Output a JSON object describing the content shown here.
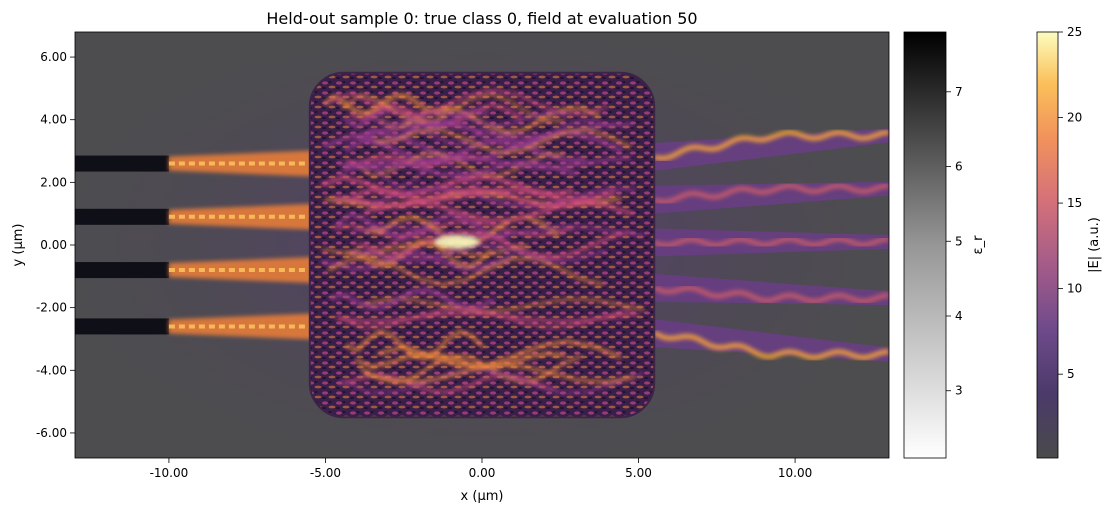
{
  "chart_data": {
    "type": "heatmap",
    "title": "Held-out sample 0: true class 0, field at evaluation 50",
    "xlabel": "x (µm)",
    "ylabel": "y (µm)",
    "xlim": [
      -13,
      13
    ],
    "ylim": [
      -6.8,
      6.8
    ],
    "x_ticks": [
      {
        "value": -10,
        "label": "-10.00"
      },
      {
        "value": -5,
        "label": "-5.00"
      },
      {
        "value": 0,
        "label": "0.00"
      },
      {
        "value": 5,
        "label": "5.00"
      },
      {
        "value": 10,
        "label": "10.00"
      }
    ],
    "y_ticks": [
      {
        "value": 6,
        "label": "6.00"
      },
      {
        "value": 4,
        "label": "4.00"
      },
      {
        "value": 2,
        "label": "2.00"
      },
      {
        "value": 0,
        "label": "0.00"
      },
      {
        "value": -2,
        "label": "-2.00"
      },
      {
        "value": -4,
        "label": "-4.00"
      },
      {
        "value": -6,
        "label": "-6.00"
      }
    ],
    "grid": false,
    "design_region": {
      "x": [
        -5.5,
        5.5
      ],
      "y": [
        -5.5,
        5.5
      ]
    },
    "input_waveguides": [
      {
        "y": 2.6,
        "x_start": -13,
        "x_end": -10
      },
      {
        "y": 0.9,
        "x_start": -13,
        "x_end": -10
      },
      {
        "y": -0.8,
        "x_start": -13,
        "x_end": -10
      },
      {
        "y": -2.6,
        "x_start": -13,
        "x_end": -10
      }
    ],
    "output_waveguides": [
      {
        "y": 3.5,
        "x_start": 5.5,
        "x_end": 13
      },
      {
        "y": 1.8,
        "x_start": 5.5,
        "x_end": 13
      },
      {
        "y": 0.1,
        "x_start": 5.5,
        "x_end": 13
      },
      {
        "y": -1.7,
        "x_start": 5.5,
        "x_end": 13
      },
      {
        "y": -3.5,
        "x_start": 5.5,
        "x_end": 13
      }
    ],
    "colorbars": [
      {
        "name": "permittivity",
        "label": "ε_r",
        "colormap": "Greys",
        "range": [
          2.1,
          7.8
        ],
        "ticks": [
          {
            "value": 7,
            "label": "7"
          },
          {
            "value": 6,
            "label": "6"
          },
          {
            "value": 5,
            "label": "5"
          },
          {
            "value": 4,
            "label": "4"
          },
          {
            "value": 3,
            "label": "3"
          }
        ]
      },
      {
        "name": "field-magnitude",
        "label": "|E| (a.u.)",
        "colormap": "inferno",
        "range": [
          0.1,
          25
        ],
        "ticks": [
          {
            "value": 25,
            "label": "25"
          },
          {
            "value": 20,
            "label": "20"
          },
          {
            "value": 15,
            "label": "15"
          },
          {
            "value": 10,
            "label": "10"
          },
          {
            "value": 5,
            "label": "5"
          }
        ]
      }
    ]
  }
}
